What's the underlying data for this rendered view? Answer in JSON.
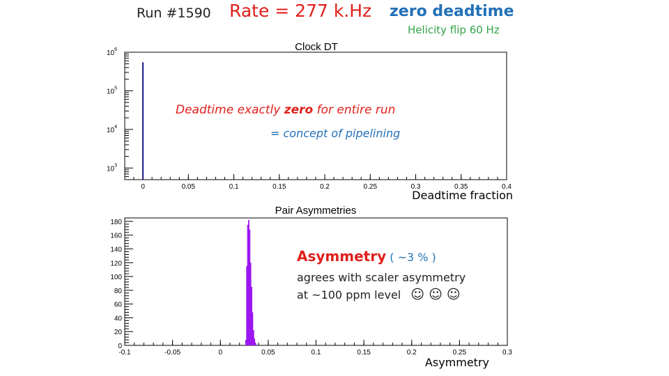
{
  "header": {
    "run": "Run #1590",
    "rate": "Rate = 277 k.Hz",
    "zero_deadtime": "zero  deadtime",
    "helicity": "Helicity  flip  60 Hz"
  },
  "colors": {
    "red": "#e0201b",
    "blue": "#2370b8",
    "green": "#31a34a",
    "hist1": "#1a1a8c",
    "hist2": "#9b16f0"
  },
  "annotations": {
    "deadtime_pre": "Deadtime  exactly  ",
    "deadtime_zero": "zero",
    "deadtime_post": "  for  entire  run",
    "pipelining": "= concept  of   pipelining",
    "asymmetry_word": "Asymmetry",
    "asymmetry_pct": " (  ~3 % )",
    "agrees": "agrees  with  scaler asymmetry",
    "ppm": "at   ~100  ppm  level",
    "smileys": "☺ ☺ ☺"
  },
  "chart_data": [
    {
      "type": "bar",
      "title": "Clock DT",
      "xlabel": "Deadtime  fraction",
      "ylabel": "",
      "xlim": [
        -0.02,
        0.4
      ],
      "ylim": [
        500,
        1000000
      ],
      "yscale": "log",
      "x_ticks": [
        "0",
        "0.05",
        "0.1",
        "0.15",
        "0.2",
        "0.25",
        "0.3",
        "0.35",
        "0.4"
      ],
      "y_ticks": [
        {
          "base": "10",
          "exp": "3"
        },
        {
          "base": "10",
          "exp": "4"
        },
        {
          "base": "10",
          "exp": "5"
        },
        {
          "base": "10",
          "exp": "6"
        }
      ],
      "x": [
        0.0
      ],
      "values": [
        550000
      ],
      "color": "#1a1a8c"
    },
    {
      "type": "bar",
      "title": "Pair Asymmetries",
      "xlabel": "Asymmetry",
      "ylabel": "",
      "xlim": [
        -0.1,
        0.3
      ],
      "ylim": [
        0,
        185
      ],
      "x_ticks": [
        "-0.1",
        "-0.05",
        "0",
        "0.05",
        "0.1",
        "0.15",
        "0.2",
        "0.25",
        "0.3"
      ],
      "y_ticks": [
        "0",
        "20",
        "40",
        "60",
        "80",
        "100",
        "120",
        "140",
        "160",
        "180"
      ],
      "x": [
        0.0265,
        0.0275,
        0.0285,
        0.0295,
        0.0305,
        0.0315,
        0.0325,
        0.0335,
        0.0345,
        0.0355,
        0.0365,
        0.0375
      ],
      "values": [
        8,
        115,
        175,
        182,
        168,
        120,
        85,
        48,
        22,
        10,
        4,
        1
      ],
      "bin_width": 0.001,
      "color": "#9b16f0"
    }
  ]
}
